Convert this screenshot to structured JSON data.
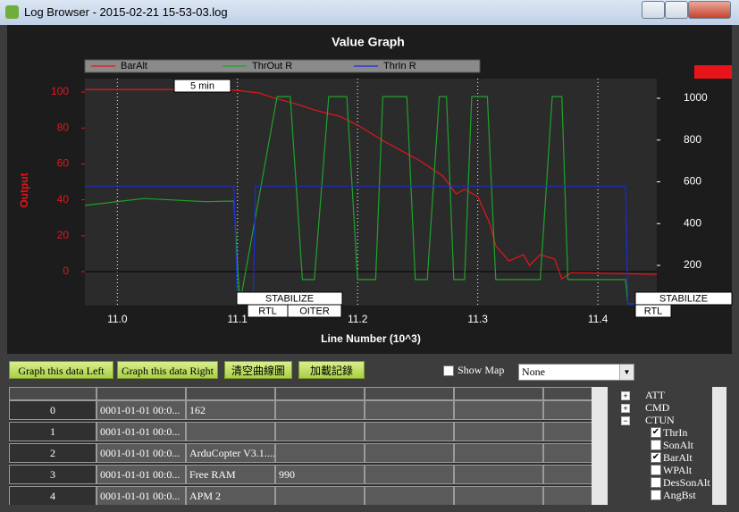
{
  "window": {
    "title": "Log Browser - 2015-02-21 15-53-03.log"
  },
  "chart_data": {
    "type": "line",
    "title": "Value Graph",
    "xlabel": "Line Number (10^3)",
    "ylabel": "Output",
    "xlim": [
      10.973,
      11.449
    ],
    "xticks": [
      {
        "value": 11,
        "label": "11.0"
      },
      11.1,
      11.2,
      11.3,
      11.4
    ],
    "ylim": [
      -18.9,
      107.5
    ],
    "yticks": [
      0,
      20,
      40,
      60,
      80,
      100
    ],
    "y2lim": [
      7.5,
      1094
    ],
    "y2ticks": [
      200,
      400,
      600,
      800,
      1000
    ],
    "grid": true,
    "series": [
      {
        "name": "BarAlt",
        "color": "#e8141a",
        "x": [
          10.973,
          11.051,
          11.1,
          11.118,
          11.129,
          11.148,
          11.167,
          11.185,
          11.2,
          11.222,
          11.252,
          11.271,
          11.282,
          11.289,
          11.3,
          11.31,
          11.315,
          11.326,
          11.338,
          11.343,
          11.352,
          11.364,
          11.37,
          11.378,
          11.449
        ],
        "values": [
          101.5,
          101.5,
          101,
          99.5,
          97,
          93.5,
          89.5,
          86.6,
          81.6,
          72.6,
          61.7,
          53.2,
          43.3,
          45.8,
          41.8,
          26.9,
          14.4,
          6,
          9.5,
          3.5,
          9.5,
          7,
          -4,
          -0.5,
          -1.5
        ]
      },
      {
        "name": "ThrOut R",
        "color": "#1fa32a",
        "axis": "y2",
        "x": [
          10.973,
          11.022,
          11.074,
          11.097,
          11.102,
          11.133,
          11.144,
          11.154,
          11.164,
          11.176,
          11.191,
          11.2,
          11.215,
          11.221,
          11.241,
          11.248,
          11.258,
          11.268,
          11.274,
          11.28,
          11.289,
          11.295,
          11.308,
          11.315,
          11.352,
          11.362,
          11.37,
          11.375,
          11.423,
          11.425,
          11.449
        ],
        "values": [
          487,
          520,
          505,
          508,
          16,
          1008,
          1008,
          132,
          132,
          1008,
          1008,
          132,
          132,
          1008,
          1008,
          132,
          132,
          1008,
          1008,
          132,
          132,
          1008,
          1008,
          132,
          132,
          1008,
          1008,
          132,
          132,
          16,
          16
        ]
      },
      {
        "name": "ThrIn R",
        "color": "#1a2be0",
        "axis": "y2",
        "x": [
          10.973,
          11.097,
          11.1,
          11.113,
          11.115,
          11.423,
          11.425,
          11.449
        ],
        "values": [
          580,
          580,
          16,
          16,
          580,
          580,
          16,
          16
        ]
      }
    ],
    "annotations": [
      "5 min",
      "STABILIZE",
      "RTL",
      "OITER",
      "STABILIZE",
      "RTL"
    ]
  },
  "controls": {
    "buttons": [
      "Graph this data Left",
      "Graph this data Right",
      "清空曲線圖",
      "加載記錄"
    ],
    "show_map": {
      "label": "Show Map",
      "checked": false
    },
    "dropdown": "None"
  },
  "table": {
    "rows": [
      [
        "0",
        "0001-01-01 00:0...",
        "162"
      ],
      [
        "1",
        "0001-01-01 00:0..."
      ],
      [
        "2",
        "0001-01-01 00:0...",
        "ArduCopter V3.1...."
      ],
      [
        "3",
        "0001-01-01 00:0...",
        "Free RAM",
        "990"
      ],
      [
        "4",
        "0001-01-01 00:0...",
        "APM 2"
      ]
    ]
  },
  "tree": {
    "items": [
      {
        "label": "ATT",
        "expanded": false
      },
      {
        "label": "CMD",
        "expanded": false
      },
      {
        "label": "CTUN",
        "expanded": true
      },
      {
        "label": "ThrIn",
        "checked": true
      },
      {
        "label": "SonAlt",
        "checked": false
      },
      {
        "label": "BarAlt",
        "checked": true
      },
      {
        "label": "WPAlt",
        "checked": false
      },
      {
        "label": "DesSonAlt",
        "checked": false
      },
      {
        "label": "AngBst",
        "checked": false
      }
    ]
  }
}
